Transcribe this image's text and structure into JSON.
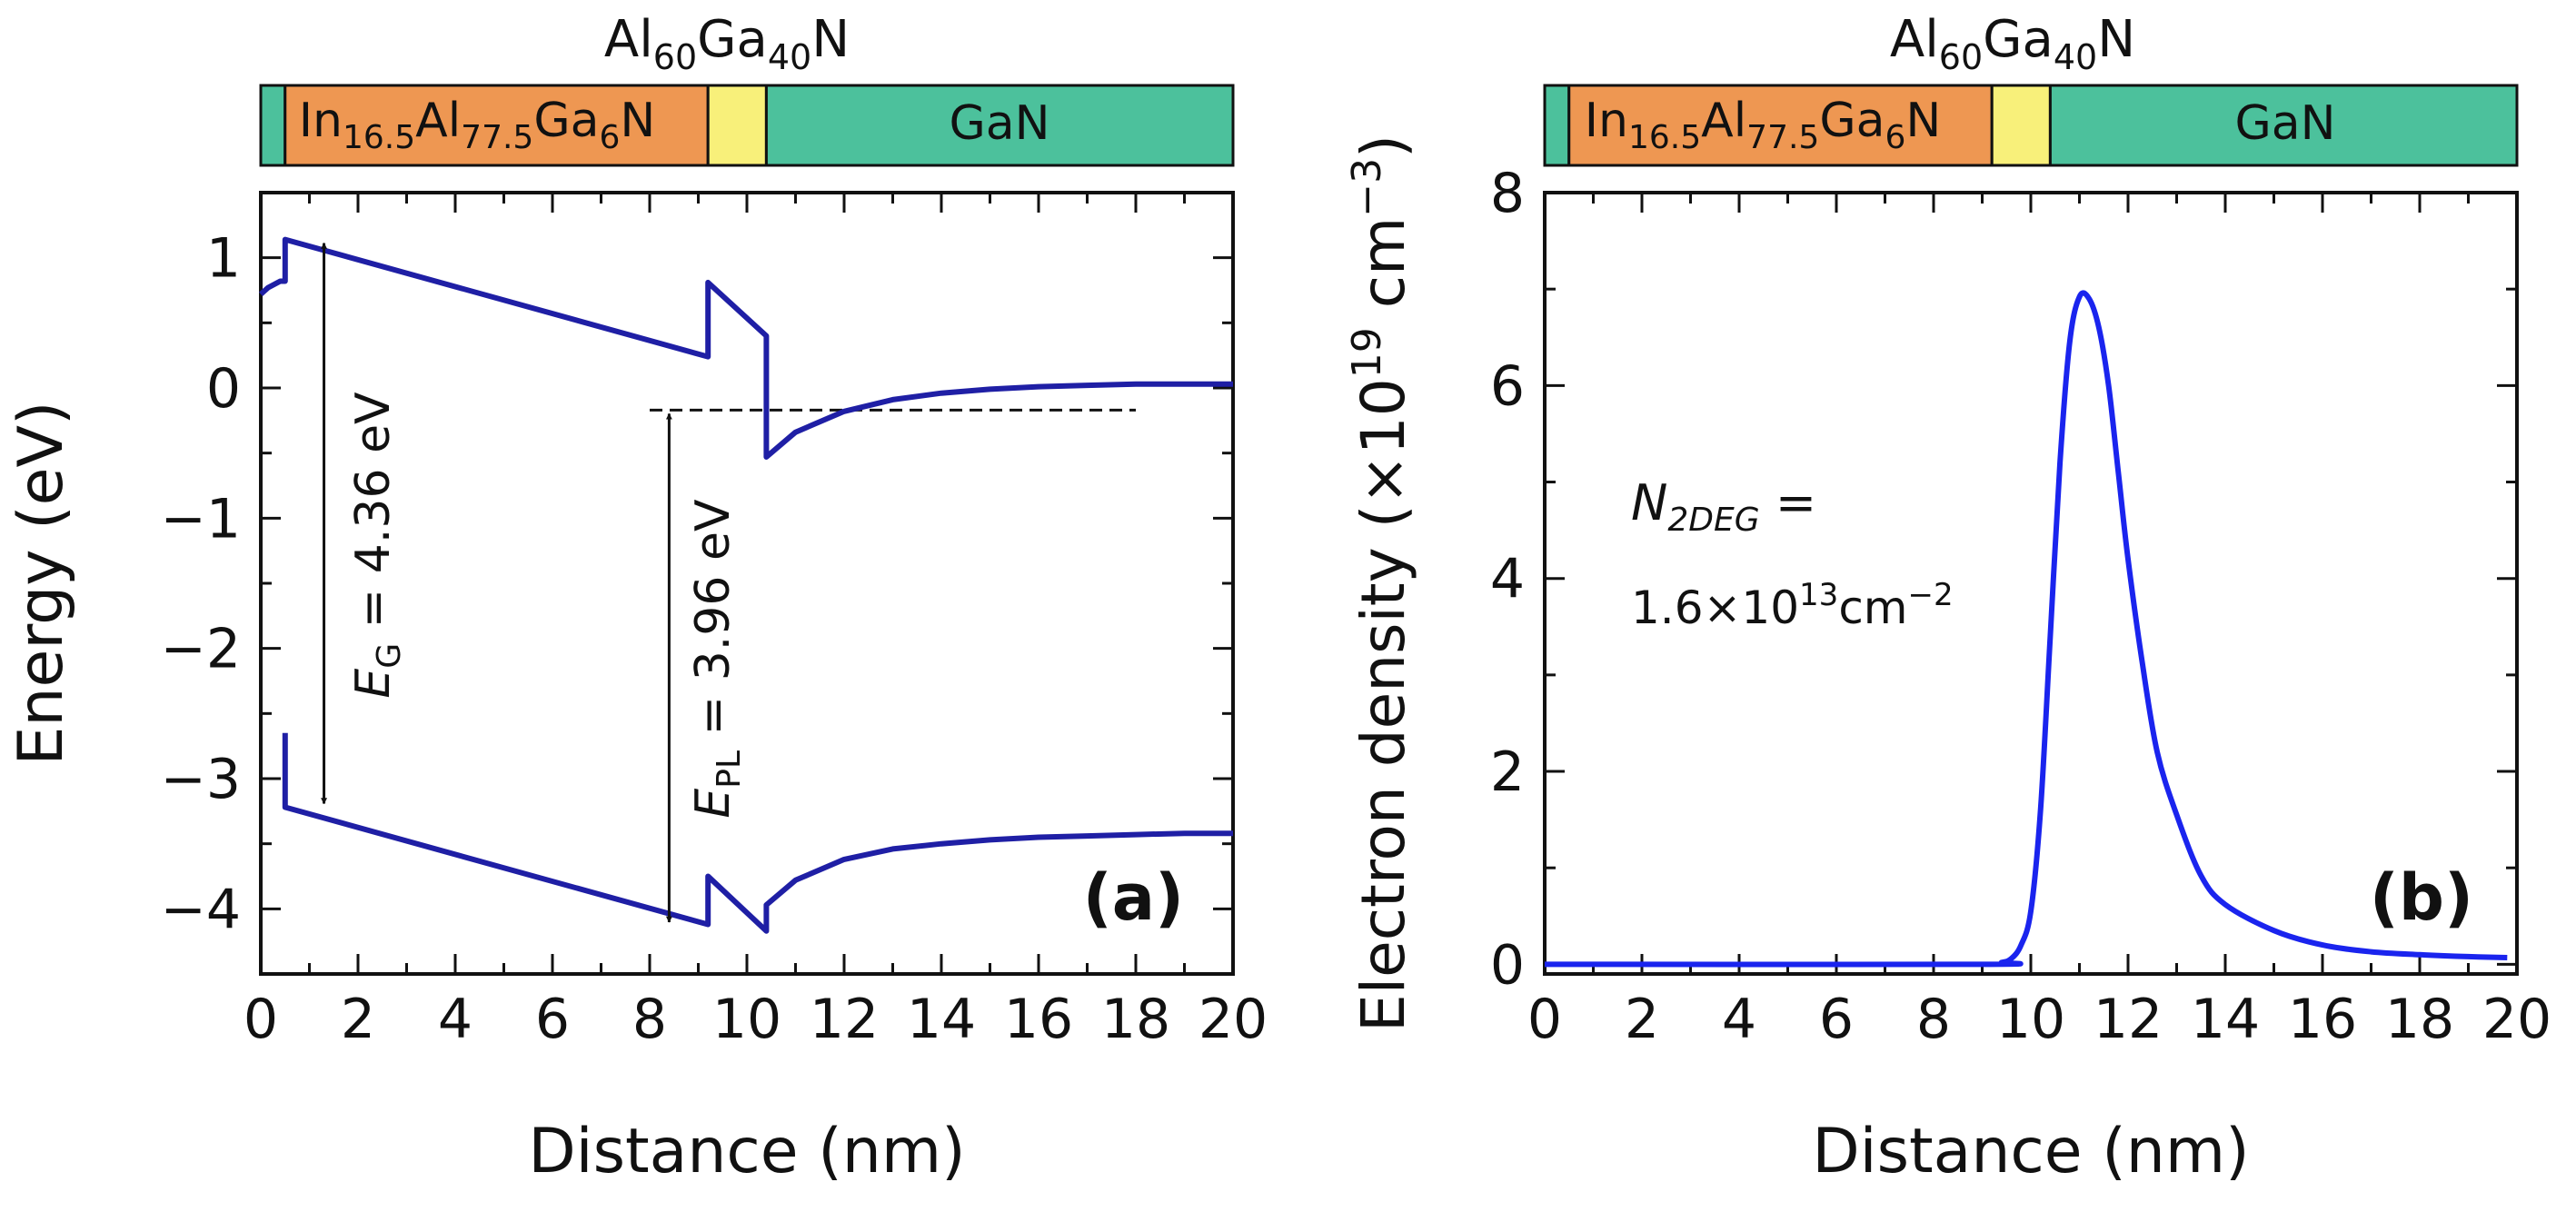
{
  "colors": {
    "gan": "#4cc19c",
    "inalgan": "#ee9752",
    "algan": "#f8f07a",
    "curve_band": "#1f1fa5",
    "curve_density": "#1a24ee",
    "text": "#111111"
  },
  "layer_stack": {
    "top_label": {
      "base1": "Al",
      "sub1": "60",
      "base2": "Ga",
      "sub2": "40",
      "base3": "N"
    },
    "barrier_label": {
      "base1": "In",
      "sub1": "16.5",
      "base2": "Al",
      "sub2": "77.5",
      "base3": "Ga",
      "sub3": "6",
      "base4": "N"
    },
    "gan_label": "GaN",
    "layers": [
      {
        "material": "GaN",
        "color_key": "gan",
        "start": 0,
        "end": 0.5
      },
      {
        "material": "InAlGaN",
        "color_key": "inalgan",
        "start": 0.5,
        "end": 9.2
      },
      {
        "material": "AlGaN",
        "color_key": "algan",
        "start": 9.2,
        "end": 10.4
      },
      {
        "material": "GaN",
        "color_key": "gan",
        "start": 10.4,
        "end": 20
      }
    ]
  },
  "chart_data": [
    {
      "type": "line",
      "panel_label": "(a)",
      "xlabel": "Distance (nm)",
      "ylabel": "Energy (eV)",
      "xlim": [
        0,
        20
      ],
      "ylim": [
        -4.5,
        1.5
      ],
      "xticks": [
        0,
        2,
        4,
        6,
        8,
        10,
        12,
        14,
        16,
        18,
        20
      ],
      "yticks": [
        1,
        0,
        -1,
        -2,
        -3,
        -4
      ],
      "ytick_labels": [
        "1",
        "0",
        "−1",
        "−2",
        "−3",
        "−4"
      ],
      "fermi_level": {
        "y": -0.17,
        "x_range": [
          8.0,
          18.0
        ]
      },
      "series": [
        {
          "name": "conduction band",
          "x": [
            0,
            0.15,
            0.4,
            0.5,
            0.5,
            9.2,
            9.2,
            10.4,
            10.4,
            11.0,
            12.0,
            13.0,
            14.0,
            15.0,
            16.0,
            17.0,
            18.0,
            19.0,
            20.0
          ],
          "y": [
            0.72,
            0.77,
            0.82,
            0.82,
            1.14,
            0.24,
            0.81,
            0.4,
            -0.53,
            -0.34,
            -0.18,
            -0.09,
            -0.04,
            -0.01,
            0.01,
            0.02,
            0.03,
            0.03,
            0.03
          ]
        },
        {
          "name": "valence band",
          "x": [
            0.5,
            0.5,
            9.2,
            9.2,
            10.4,
            10.4,
            11.0,
            12.0,
            13.0,
            14.0,
            15.0,
            16.0,
            17.0,
            18.0,
            19.0,
            20.0
          ],
          "y": [
            -2.65,
            -3.22,
            -4.12,
            -3.75,
            -4.17,
            -3.97,
            -3.78,
            -3.62,
            -3.54,
            -3.5,
            -3.47,
            -3.45,
            -3.44,
            -3.43,
            -3.42,
            -3.42
          ]
        }
      ],
      "annotations": {
        "eg": {
          "symbol": "E",
          "sub": "G",
          "text": " = 4.36 eV",
          "x": 1.3,
          "y_from": 1.14,
          "y_to": -3.22
        },
        "epl": {
          "symbol": "E",
          "sub": "PL",
          "text": " = 3.96 eV",
          "x": 8.4,
          "y_from": -0.17,
          "y_to": -4.13
        }
      }
    },
    {
      "type": "line",
      "panel_label": "(b)",
      "xlabel": "Distance (nm)",
      "ylabel_main": "Electron density (×10",
      "ylabel_sup1": "19",
      "ylabel_mid": " cm",
      "ylabel_sup2": "−3",
      "ylabel_end": ")",
      "xlim": [
        0,
        20
      ],
      "ylim": [
        -0.1,
        8
      ],
      "xticks": [
        0,
        2,
        4,
        6,
        8,
        10,
        12,
        14,
        16,
        18,
        20
      ],
      "yticks": [
        0,
        2,
        4,
        6,
        8
      ],
      "series": [
        {
          "name": "electron density",
          "x": [
            0,
            9.0,
            9.4,
            9.6,
            9.8,
            10.0,
            10.2,
            10.4,
            10.6,
            10.8,
            11.0,
            11.2,
            11.4,
            11.6,
            11.8,
            12.0,
            12.3,
            12.6,
            13.0,
            13.5,
            14.0,
            15.0,
            16.0,
            17.0,
            18.0,
            19.0,
            19.8
          ],
          "y": [
            0,
            0,
            0.02,
            0.06,
            0.2,
            0.55,
            1.6,
            3.4,
            5.2,
            6.45,
            6.92,
            6.9,
            6.6,
            6.0,
            5.1,
            4.2,
            3.1,
            2.2,
            1.55,
            0.92,
            0.62,
            0.35,
            0.2,
            0.13,
            0.1,
            0.08,
            0.07
          ]
        }
      ],
      "annotation": {
        "n_symbol": "N",
        "n_sub": "2DEG",
        "n_eq": " =",
        "value_base": "1.6×10",
        "value_sup": "13",
        "value_unit": "cm",
        "value_unit_sup": "−2"
      }
    }
  ]
}
